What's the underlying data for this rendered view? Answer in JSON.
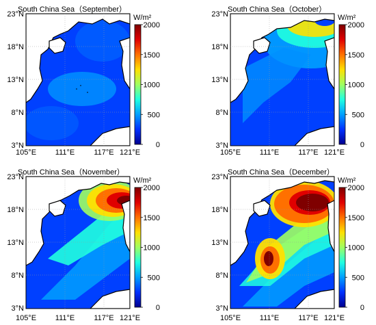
{
  "colormap": [
    "#00008f",
    "#0030ff",
    "#00a0ff",
    "#20ffe0",
    "#a0ff60",
    "#ffe000",
    "#ff7000",
    "#e00000",
    "#7f0000"
  ],
  "colorbar": {
    "unit": "W/m²",
    "ticks": [
      "0",
      "500",
      "1000",
      "1500",
      "2000"
    ],
    "range": [
      0,
      2000
    ]
  },
  "lat_labels": [
    "23°N",
    "18°N",
    "13°N",
    "8°N",
    "3°N"
  ],
  "lon_labels": [
    "105°E",
    "111°E",
    "117°E",
    "121°E"
  ],
  "panels": [
    {
      "title": "South China Sea（September）"
    },
    {
      "title": "South China Sea（October）"
    },
    {
      "title": "South China Sea（November）"
    },
    {
      "title": "South China Sea（December）"
    }
  ]
}
